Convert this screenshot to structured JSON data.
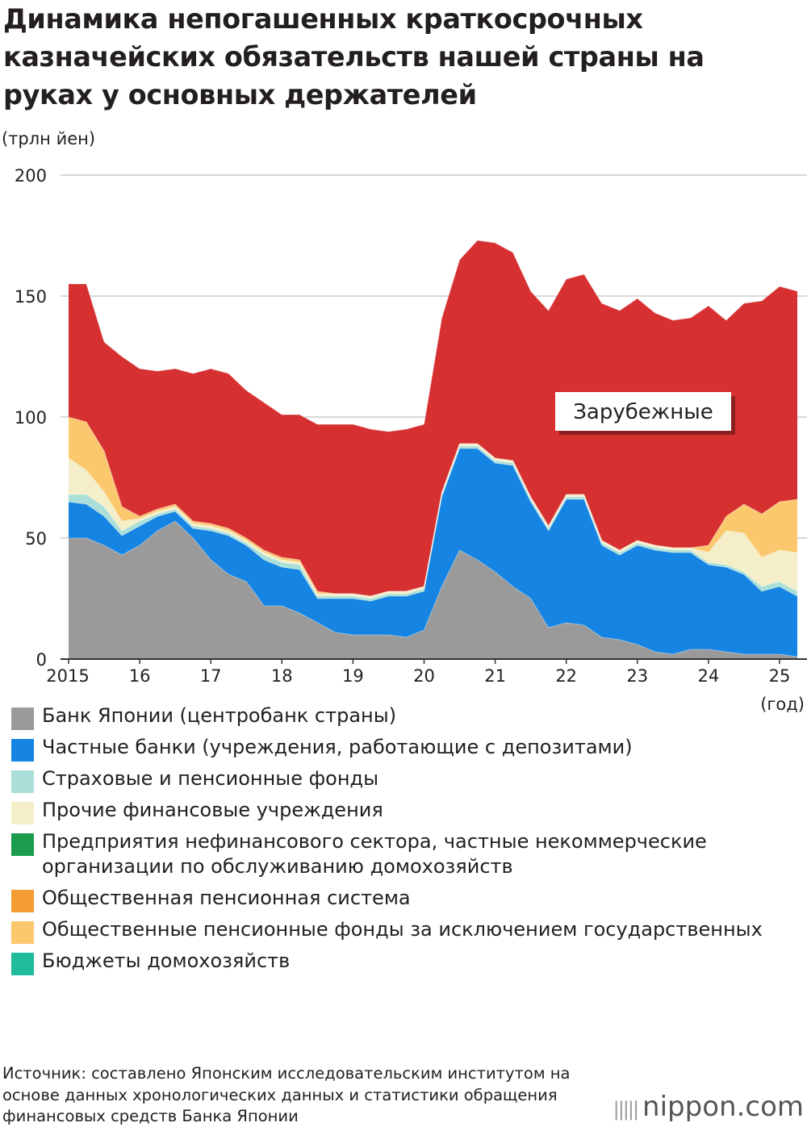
{
  "title": "Динамика непогашенных краткосрочных казначейских обязательств нашей страны на руках у основных держателей",
  "unit_label": "(трлн йен)",
  "year_unit": "(год)",
  "source": "Источник: составлено Японским исследовательским институтом на основе данных хронологических данных и статистики обращения финансовых средств Банка Японии",
  "logo": {
    "bars": "|||||",
    "name": "nippon",
    "suffix": ".com"
  },
  "colors": {
    "boj": "#9a9a9a",
    "banks": "#1584e2",
    "insurance": "#a9dfd8",
    "other_fin": "#f4efc8",
    "corporates": "#1a9b4e",
    "public_pension": "#f39c33",
    "pension_ex_public": "#fbc86e",
    "households": "#1fbc9c",
    "overseas": "#d63031",
    "grid": "#cccccc",
    "axis": "#333333"
  },
  "chart_data": {
    "type": "area",
    "stacked": true,
    "ylabel": "(трлн йен)",
    "xlabel": "(год)",
    "ylim": [
      0,
      200
    ],
    "yticks": [
      0,
      50,
      100,
      150,
      200
    ],
    "x_tick_labels": [
      "2015",
      "16",
      "17",
      "18",
      "19",
      "20",
      "21",
      "22",
      "23",
      "24",
      "25"
    ],
    "x_start": "2015-03",
    "x_end": "2025-06",
    "x_step": "quarter",
    "x": [
      "2015Q1",
      "2015Q2",
      "2015Q3",
      "2015Q4",
      "2016Q1",
      "2016Q2",
      "2016Q3",
      "2016Q4",
      "2017Q1",
      "2017Q2",
      "2017Q3",
      "2017Q4",
      "2018Q1",
      "2018Q2",
      "2018Q3",
      "2018Q4",
      "2019Q1",
      "2019Q2",
      "2019Q3",
      "2019Q4",
      "2020Q1",
      "2020Q2",
      "2020Q3",
      "2020Q4",
      "2021Q1",
      "2021Q2",
      "2021Q3",
      "2021Q4",
      "2022Q1",
      "2022Q2",
      "2022Q3",
      "2022Q4",
      "2023Q1",
      "2023Q2",
      "2023Q3",
      "2023Q4",
      "2024Q1",
      "2024Q2",
      "2024Q3",
      "2024Q4",
      "2025Q1",
      "2025Q2"
    ],
    "grid": true,
    "annotations": [
      {
        "text": "Зарубежные",
        "series": "Зарубежные"
      }
    ],
    "series": [
      {
        "name": "Банк Японии (центробанк страны)",
        "color": "#9a9a9a",
        "values": [
          50,
          50,
          47,
          43,
          47,
          53,
          57,
          50,
          41,
          35,
          32,
          22,
          22,
          19,
          15,
          11,
          10,
          10,
          10,
          9,
          12,
          30,
          45,
          41,
          36,
          30,
          25,
          13,
          15,
          14,
          9,
          8,
          6,
          3,
          2,
          4,
          4,
          3,
          2,
          2,
          2,
          1
        ]
      },
      {
        "name": "Частные банки (учреждения, работающие с депозитами)",
        "color": "#1584e2",
        "values": [
          15,
          14,
          12,
          8,
          8,
          6,
          4,
          4,
          12,
          16,
          15,
          19,
          16,
          18,
          10,
          14,
          15,
          14,
          16,
          17,
          16,
          37,
          42,
          46,
          45,
          50,
          40,
          40,
          51,
          52,
          38,
          35,
          41,
          42,
          42,
          40,
          35,
          35,
          33,
          26,
          28,
          25
        ]
      },
      {
        "name": "Страховые и пенсионные фонды",
        "color": "#a9dfd8",
        "values": [
          3,
          4,
          4,
          2,
          2,
          1,
          1,
          1,
          1,
          1,
          1,
          2,
          2,
          2,
          1,
          1,
          1,
          1,
          1,
          1,
          1,
          1,
          1,
          1,
          1,
          1,
          1,
          1,
          1,
          1,
          1,
          1,
          1,
          1,
          1,
          1,
          1,
          1,
          1,
          2,
          2,
          2
        ]
      },
      {
        "name": "Прочие финансовые учреждения",
        "color": "#f4efc8",
        "values": [
          15,
          10,
          6,
          4,
          1,
          1,
          1,
          1,
          1,
          1,
          1,
          1,
          1,
          1,
          1,
          1,
          1,
          1,
          1,
          1,
          1,
          1,
          1,
          1,
          1,
          1,
          1,
          1,
          1,
          1,
          1,
          1,
          1,
          1,
          1,
          1,
          4,
          14,
          16,
          12,
          13,
          16
        ]
      },
      {
        "name": "Предприятия нефинансового сектора, частные некоммерческие организации по обслуживанию домохозяйств",
        "color": "#1a9b4e",
        "values": [
          0,
          0,
          0,
          0,
          0,
          0,
          0,
          0,
          0,
          0,
          0,
          0,
          0,
          0,
          0,
          0,
          0,
          0,
          0,
          0,
          0,
          0,
          0,
          0,
          0,
          0,
          0,
          0,
          0,
          0,
          0,
          0,
          0,
          0,
          0,
          0,
          0,
          0,
          0,
          0,
          0,
          0
        ]
      },
      {
        "name": "Общественная пенсионная система",
        "color": "#f39c33",
        "values": [
          0,
          0,
          0,
          0,
          0,
          0,
          0,
          0,
          0,
          0,
          0,
          0,
          0,
          0,
          0,
          0,
          0,
          0,
          0,
          0,
          0,
          0,
          0,
          0,
          0,
          0,
          0,
          0,
          0,
          0,
          0,
          0,
          0,
          0,
          0,
          0,
          0,
          0,
          0,
          0,
          0,
          0
        ]
      },
      {
        "name": "Общественные пенсионные фонды за исключением государственных",
        "color": "#fbc86e",
        "values": [
          17,
          20,
          17,
          6,
          1,
          1,
          1,
          1,
          1,
          1,
          1,
          1,
          1,
          1,
          1,
          0,
          0,
          0,
          0,
          0,
          0,
          0,
          0,
          0,
          0,
          0,
          0,
          0,
          0,
          0,
          0,
          0,
          0,
          0,
          0,
          0,
          3,
          6,
          12,
          18,
          20,
          22
        ]
      },
      {
        "name": "Бюджеты домохозяйств",
        "color": "#1fbc9c",
        "values": [
          0,
          0,
          0,
          0,
          0,
          0,
          0,
          0,
          0,
          0,
          0,
          0,
          0,
          0,
          0,
          0,
          0,
          0,
          0,
          0,
          0,
          0,
          0,
          0,
          0,
          0,
          0,
          0,
          0,
          0,
          0,
          0,
          0,
          0,
          0,
          0,
          0,
          0,
          0,
          0,
          0,
          0
        ]
      },
      {
        "name": "Зарубежные",
        "color": "#d63031",
        "values": [
          55,
          57,
          45,
          62,
          61,
          57,
          56,
          61,
          64,
          64,
          61,
          61,
          59,
          60,
          69,
          70,
          70,
          69,
          66,
          67,
          67,
          72,
          76,
          84,
          89,
          86,
          85,
          89,
          89,
          91,
          98,
          99,
          100,
          96,
          94,
          95,
          99,
          81,
          83,
          88,
          89,
          86
        ]
      }
    ]
  },
  "legend": [
    {
      "label": "Банк Японии (центробанк страны)",
      "color": "#9a9a9a"
    },
    {
      "label": "Частные банки (учреждения, работающие с депозитами)",
      "color": "#1584e2"
    },
    {
      "label": "Страховые и пенсионные фонды",
      "color": "#a9dfd8"
    },
    {
      "label": "Прочие финансовые учреждения",
      "color": "#f4efc8"
    },
    {
      "label": "Предприятия нефинансового сектора, частные некоммерческие организации по обслуживанию домохозяйств",
      "color": "#1a9b4e"
    },
    {
      "label": "Общественная пенсионная система",
      "color": "#f39c33"
    },
    {
      "label": "Общественные пенсионные фонды за исключением государственных",
      "color": "#fbc86e"
    },
    {
      "label": "Бюджеты домохозяйств",
      "color": "#1fbc9c"
    }
  ]
}
